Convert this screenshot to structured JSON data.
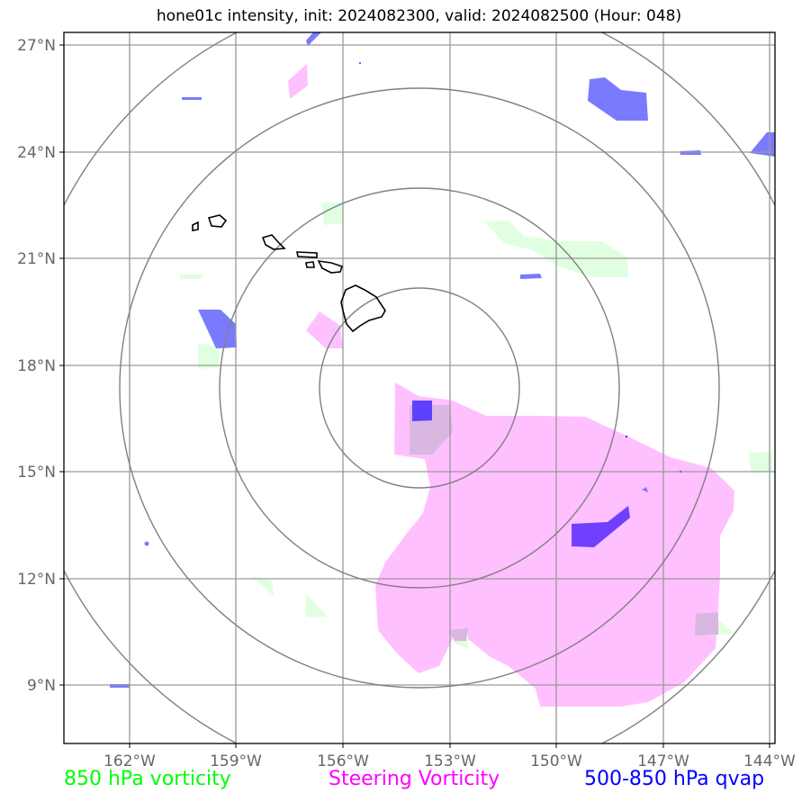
{
  "title": "hone01c intensity, init: 2024082300, valid: 2024082500 (Hour: 048)",
  "axes": {
    "lon_labels": [
      "162°W",
      "159°W",
      "156°W",
      "153°W",
      "150°W",
      "147°W",
      "144°W"
    ],
    "lat_labels": [
      "27°N",
      "24°N",
      "21°N",
      "18°N",
      "15°N",
      "12°N",
      "9°N"
    ]
  },
  "legend": [
    {
      "label": "850 hPa vorticity",
      "color": "#00ff00"
    },
    {
      "label": "Steering Vorticity",
      "color": "#ff00ff"
    },
    {
      "label": "500-850 hPa qvap",
      "color": "#0000ff"
    }
  ],
  "colors": {
    "steering_fill": "#ffc0ff",
    "vorticity_fill": "#e0ffe0",
    "qvap_fill": "#7a7aff",
    "qvap_dark": "#6040ff",
    "grid": "#999999",
    "rings": "#808080",
    "coast": "#000000"
  },
  "map_data": {
    "extent_lon": [
      -163.8,
      -143.9
    ],
    "extent_lat": [
      7.4,
      27.3
    ],
    "center": {
      "lon": -153.8,
      "lat": 17.5
    },
    "rings_deg": [
      2.8,
      5.6,
      8.4,
      11.2
    ]
  }
}
